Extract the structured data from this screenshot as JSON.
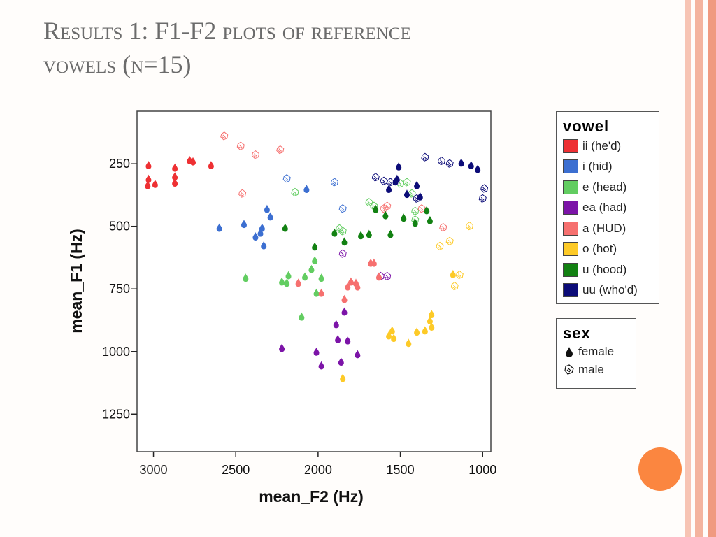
{
  "slide": {
    "title_line1": "Results 1: F1-F2 plots of reference",
    "title_line2": "vowels (n=15)"
  },
  "colors": {
    "accent": "#fb8640",
    "border_stripes": [
      "#f7c4b4",
      "#f4b49f",
      "#f09a80"
    ]
  },
  "chart_data": {
    "type": "scatter",
    "xlabel": "mean_F2 (Hz)",
    "ylabel": "mean_F1 (Hz)",
    "x_reversed": true,
    "y_reversed": true,
    "xlim": [
      3100,
      950
    ],
    "ylim": [
      40,
      1400
    ],
    "xticks": [
      3000,
      2500,
      2000,
      1500,
      1000
    ],
    "yticks": [
      250,
      500,
      750,
      1000,
      1250
    ],
    "grid": false,
    "legend_placement": "right",
    "marker_legend": {
      "title": "sex",
      "items": [
        {
          "label": "female",
          "marker": "filled-drop"
        },
        {
          "label": "male",
          "marker": "open-hand"
        }
      ]
    },
    "series": [
      {
        "name": "ii (he'd)",
        "color": "#ee3033",
        "female": [
          [
            3030,
            255
          ],
          [
            3030,
            310
          ],
          [
            3035,
            335
          ],
          [
            2990,
            330
          ],
          [
            2870,
            265
          ],
          [
            2870,
            300
          ],
          [
            2870,
            325
          ],
          [
            2780,
            235
          ],
          [
            2760,
            240
          ],
          [
            2650,
            255
          ]
        ],
        "male": []
      },
      {
        "name": "i (hid)",
        "color": "#3c6fd1",
        "female": [
          [
            2600,
            505
          ],
          [
            2450,
            490
          ],
          [
            2380,
            540
          ],
          [
            2350,
            525
          ],
          [
            2340,
            505
          ],
          [
            2330,
            575
          ],
          [
            2310,
            430
          ],
          [
            2290,
            460
          ],
          [
            2070,
            350
          ]
        ],
        "male": [
          [
            2190,
            310
          ],
          [
            1900,
            325
          ],
          [
            1850,
            430
          ]
        ]
      },
      {
        "name": "e (head)",
        "color": "#62cd61",
        "female": [
          [
            2440,
            705
          ],
          [
            2220,
            720
          ],
          [
            2190,
            725
          ],
          [
            2180,
            695
          ],
          [
            2100,
            860
          ],
          [
            2080,
            700
          ],
          [
            2040,
            670
          ],
          [
            2020,
            635
          ],
          [
            2010,
            765
          ],
          [
            1980,
            705
          ]
        ],
        "male": [
          [
            2140,
            365
          ],
          [
            1870,
            510
          ],
          [
            1850,
            520
          ],
          [
            1690,
            405
          ],
          [
            1660,
            420
          ],
          [
            1500,
            330
          ],
          [
            1460,
            325
          ],
          [
            1430,
            370
          ],
          [
            1410,
            440
          ],
          [
            1410,
            475
          ]
        ]
      },
      {
        "name": "ea (had)",
        "color": "#7c14a8",
        "female": [
          [
            2220,
            985
          ],
          [
            2010,
            1000
          ],
          [
            1980,
            1055
          ],
          [
            1890,
            890
          ],
          [
            1880,
            950
          ],
          [
            1860,
            1040
          ],
          [
            1840,
            840
          ],
          [
            1820,
            955
          ],
          [
            1760,
            1010
          ]
        ],
        "male": [
          [
            1850,
            610
          ],
          [
            1620,
            700
          ],
          [
            1580,
            700
          ]
        ]
      },
      {
        "name": "a (HUD)",
        "color": "#f6706f",
        "female": [
          [
            2120,
            725
          ],
          [
            1980,
            765
          ],
          [
            1840,
            790
          ],
          [
            1820,
            740
          ],
          [
            1800,
            720
          ],
          [
            1770,
            725
          ],
          [
            1760,
            740
          ],
          [
            1680,
            645
          ],
          [
            1660,
            645
          ],
          [
            1630,
            700
          ]
        ],
        "male": [
          [
            2570,
            140
          ],
          [
            2470,
            180
          ],
          [
            2380,
            215
          ],
          [
            2230,
            195
          ],
          [
            2460,
            370
          ],
          [
            1600,
            430
          ],
          [
            1580,
            420
          ],
          [
            1370,
            430
          ],
          [
            1240,
            505
          ]
        ]
      },
      {
        "name": "o (hot)",
        "color": "#fdca27",
        "female": [
          [
            1570,
            935
          ],
          [
            1550,
            915
          ],
          [
            1540,
            945
          ],
          [
            1450,
            965
          ],
          [
            1400,
            920
          ],
          [
            1350,
            915
          ],
          [
            1320,
            875
          ],
          [
            1310,
            900
          ],
          [
            1310,
            850
          ],
          [
            1180,
            690
          ],
          [
            1850,
            1105
          ]
        ],
        "male": [
          [
            1260,
            580
          ],
          [
            1200,
            560
          ],
          [
            1170,
            740
          ],
          [
            1140,
            695
          ],
          [
            1080,
            500
          ]
        ]
      },
      {
        "name": "u (hood)",
        "color": "#128112",
        "female": [
          [
            2200,
            505
          ],
          [
            2020,
            580
          ],
          [
            1900,
            525
          ],
          [
            1840,
            560
          ],
          [
            1740,
            535
          ],
          [
            1690,
            530
          ],
          [
            1650,
            430
          ],
          [
            1590,
            455
          ],
          [
            1560,
            530
          ],
          [
            1480,
            465
          ],
          [
            1410,
            485
          ],
          [
            1340,
            435
          ],
          [
            1320,
            475
          ]
        ],
        "male": []
      },
      {
        "name": "uu (who'd)",
        "color": "#0c0c78",
        "female": [
          [
            1570,
            350
          ],
          [
            1530,
            320
          ],
          [
            1520,
            310
          ],
          [
            1510,
            260
          ],
          [
            1460,
            370
          ],
          [
            1400,
            335
          ],
          [
            1380,
            380
          ],
          [
            1130,
            245
          ],
          [
            1070,
            255
          ],
          [
            1030,
            270
          ]
        ],
        "male": [
          [
            1650,
            305
          ],
          [
            1600,
            320
          ],
          [
            1560,
            325
          ],
          [
            1400,
            390
          ],
          [
            1350,
            225
          ],
          [
            1250,
            240
          ],
          [
            1200,
            250
          ],
          [
            1000,
            390
          ],
          [
            990,
            350
          ]
        ]
      }
    ]
  }
}
